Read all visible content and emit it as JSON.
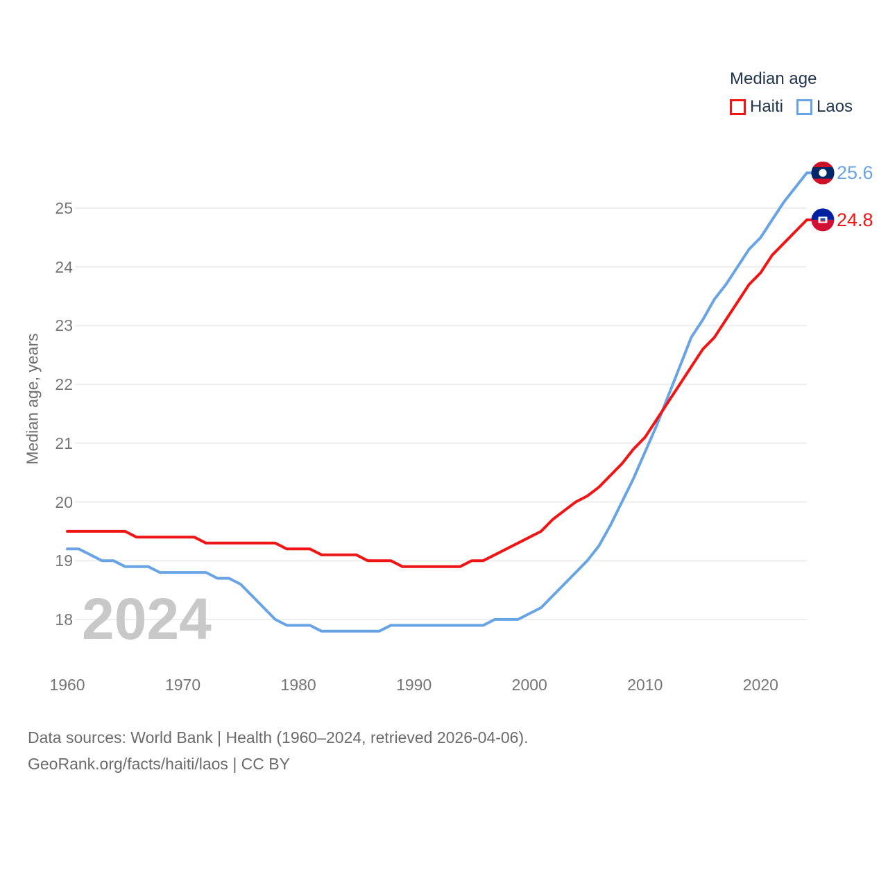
{
  "legend": {
    "title": "Median age"
  },
  "watermark": "2024",
  "y_axis": {
    "title": "Median age, years",
    "ticks": [
      25,
      24,
      23,
      22,
      21,
      20,
      19,
      18
    ]
  },
  "x_axis": {
    "ticks": [
      1960,
      1970,
      1980,
      1990,
      2000,
      2010,
      2020
    ]
  },
  "footer": {
    "line1": "Data sources: World Bank | Health (1960–2024, retrieved 2026-04-06).",
    "line2": "GeoRank.org/facts/haiti/laos | CC BY"
  },
  "chart_data": {
    "type": "line",
    "title": "Median age",
    "ylabel": "Median age, years",
    "xlabel": "",
    "x_range": [
      1960,
      2024
    ],
    "ylim": [
      17.5,
      25.8
    ],
    "grid": true,
    "legend_position": "top-right",
    "x": [
      1960,
      1961,
      1962,
      1963,
      1964,
      1965,
      1966,
      1967,
      1968,
      1969,
      1970,
      1971,
      1972,
      1973,
      1974,
      1975,
      1976,
      1977,
      1978,
      1979,
      1980,
      1981,
      1982,
      1983,
      1984,
      1985,
      1986,
      1987,
      1988,
      1989,
      1990,
      1991,
      1992,
      1993,
      1994,
      1995,
      1996,
      1997,
      1998,
      1999,
      2000,
      2001,
      2002,
      2003,
      2004,
      2005,
      2006,
      2007,
      2008,
      2009,
      2010,
      2011,
      2012,
      2013,
      2014,
      2015,
      2016,
      2017,
      2018,
      2019,
      2020,
      2021,
      2022,
      2023,
      2024
    ],
    "series": [
      {
        "name": "Haiti",
        "color": "#f01515",
        "flag": "haiti",
        "end_label": "24.8",
        "end_value": 24.8,
        "values": [
          19.5,
          19.5,
          19.5,
          19.5,
          19.5,
          19.5,
          19.4,
          19.4,
          19.4,
          19.4,
          19.4,
          19.4,
          19.3,
          19.3,
          19.3,
          19.3,
          19.3,
          19.3,
          19.3,
          19.2,
          19.2,
          19.2,
          19.1,
          19.1,
          19.1,
          19.1,
          19.0,
          19.0,
          19.0,
          18.9,
          18.9,
          18.9,
          18.9,
          18.9,
          18.9,
          19.0,
          19.0,
          19.1,
          19.2,
          19.3,
          19.4,
          19.5,
          19.7,
          19.85,
          20.0,
          20.1,
          20.25,
          20.45,
          20.65,
          20.9,
          21.1,
          21.4,
          21.7,
          22.0,
          22.3,
          22.6,
          22.8,
          23.1,
          23.4,
          23.7,
          23.9,
          24.2,
          24.4,
          24.6,
          24.8
        ]
      },
      {
        "name": "Laos",
        "color": "#68a4e4",
        "flag": "laos",
        "end_label": "25.6",
        "end_value": 25.6,
        "values": [
          19.2,
          19.2,
          19.1,
          19.0,
          19.0,
          18.9,
          18.9,
          18.9,
          18.8,
          18.8,
          18.8,
          18.8,
          18.8,
          18.7,
          18.7,
          18.6,
          18.4,
          18.2,
          18.0,
          17.9,
          17.9,
          17.9,
          17.8,
          17.8,
          17.8,
          17.8,
          17.8,
          17.8,
          17.9,
          17.9,
          17.9,
          17.9,
          17.9,
          17.9,
          17.9,
          17.9,
          17.9,
          18.0,
          18.0,
          18.0,
          18.1,
          18.2,
          18.4,
          18.6,
          18.8,
          19.0,
          19.25,
          19.6,
          20.0,
          20.4,
          20.85,
          21.3,
          21.8,
          22.3,
          22.8,
          23.1,
          23.45,
          23.7,
          24.0,
          24.3,
          24.5,
          24.8,
          25.1,
          25.35,
          25.6
        ]
      }
    ]
  }
}
